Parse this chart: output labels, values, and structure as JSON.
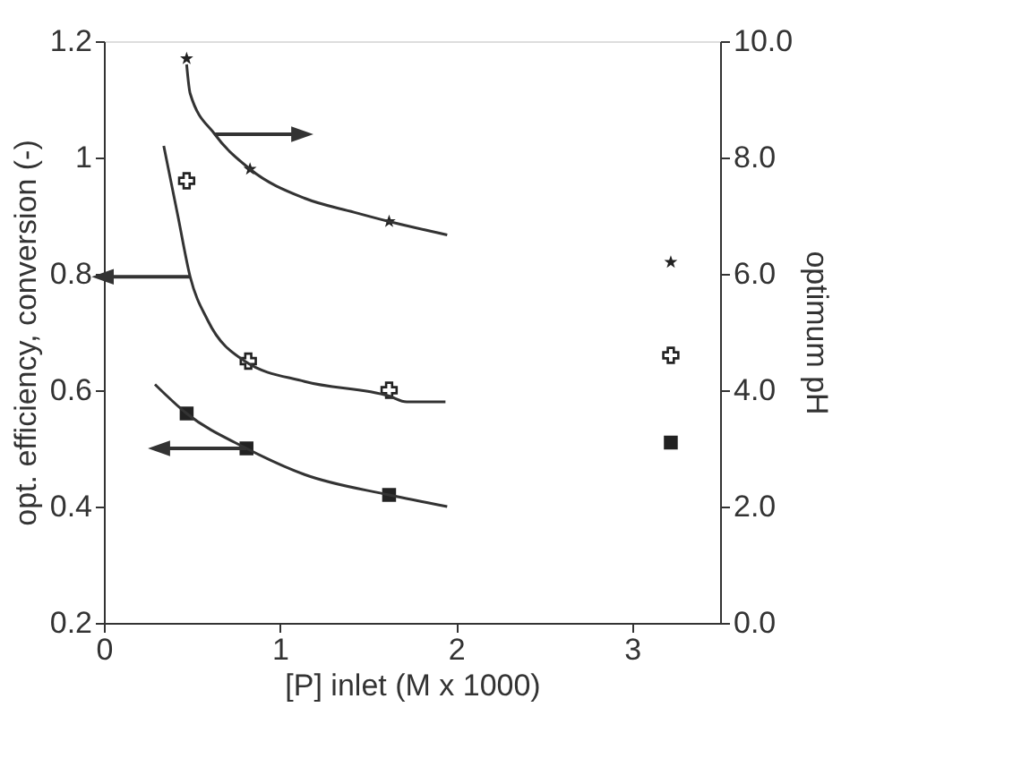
{
  "chart_data": {
    "type": "scatter",
    "xlabel": "[P] inlet  (M x 1000)",
    "ylabel": "opt. efficiency, conversion (-)",
    "y2label": "optimum pH",
    "xlim": [
      0,
      3.5
    ],
    "xticks": [
      0,
      1,
      2,
      3
    ],
    "ylim": [
      0.2,
      1.2
    ],
    "yticks": [
      0.2,
      0.4,
      0.6,
      0.8,
      1,
      1.2
    ],
    "y2lim": [
      0,
      10
    ],
    "y2ticks": [
      {
        "value": 0,
        "label": "0.0"
      },
      {
        "value": 2,
        "label": "2.0"
      },
      {
        "value": 4,
        "label": "4.0"
      },
      {
        "value": 6,
        "label": "6.0"
      },
      {
        "value": 8,
        "label": "8.0"
      },
      {
        "value": 10,
        "label": "10.0"
      }
    ],
    "grid": false,
    "series": [
      {
        "type": "scatter",
        "axis": "y2",
        "marker": "star",
        "color": "#222222",
        "x": [
          0.47,
          0.83,
          1.62,
          3.22
        ],
        "values": [
          9.7,
          7.8,
          6.9,
          6.2
        ]
      },
      {
        "type": "scatter",
        "marker": "cross",
        "color": "#222222",
        "x": [
          0.47,
          0.82,
          1.62,
          3.22
        ],
        "values": [
          0.96,
          0.65,
          0.6,
          0.66
        ]
      },
      {
        "type": "scatter",
        "marker": "square",
        "color": "#222222",
        "x": [
          0.47,
          0.81,
          1.62,
          3.22
        ],
        "values": [
          0.56,
          0.5,
          0.42,
          0.51
        ]
      },
      {
        "type": "line",
        "axis": "y2",
        "marker": "none",
        "color": "#333333",
        "x": [
          0.47,
          0.49,
          0.63,
          0.83,
          1.14,
          1.42,
          1.62,
          1.95
        ],
        "values": [
          9.6,
          9.1,
          8.4,
          7.8,
          7.3,
          7.06,
          6.9,
          6.67
        ]
      },
      {
        "type": "line",
        "marker": "none",
        "color": "#333333",
        "x": [
          0.34,
          0.42,
          0.49,
          0.59,
          0.8,
          1.14,
          1.62,
          1.72,
          1.94
        ],
        "values": [
          1.02,
          0.9,
          0.795,
          0.72,
          0.65,
          0.615,
          0.59,
          0.58,
          0.58
        ]
      },
      {
        "type": "line",
        "marker": "none",
        "color": "#333333",
        "x": [
          0.29,
          0.47,
          0.81,
          1.14,
          1.62,
          1.95
        ],
        "values": [
          0.61,
          0.56,
          0.5,
          0.455,
          0.42,
          0.4
        ]
      }
    ]
  }
}
